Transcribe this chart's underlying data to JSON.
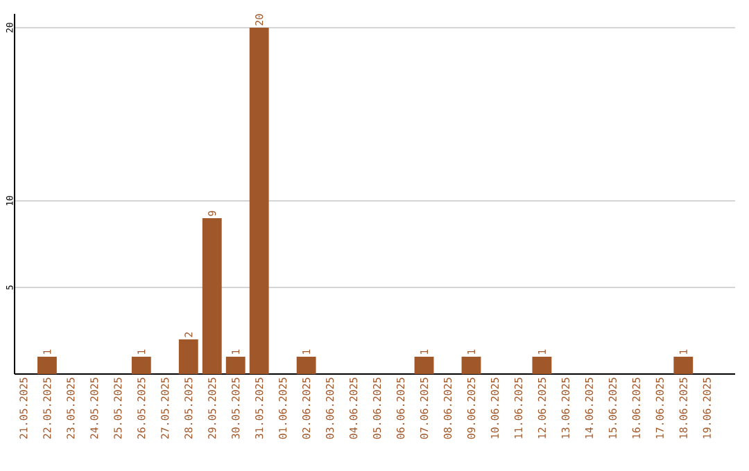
{
  "chart_data": {
    "type": "bar",
    "categories": [
      "21.05.2025",
      "22.05.2025",
      "23.05.2025",
      "24.05.2025",
      "25.05.2025",
      "26.05.2025",
      "27.05.2025",
      "28.05.2025",
      "29.05.2025",
      "30.05.2025",
      "31.05.2025",
      "01.06.2025",
      "02.06.2025",
      "03.06.2025",
      "04.06.2025",
      "05.06.2025",
      "06.06.2025",
      "07.06.2025",
      "08.06.2025",
      "09.06.2025",
      "10.06.2025",
      "11.06.2025",
      "12.06.2025",
      "13.06.2025",
      "14.06.2025",
      "15.06.2025",
      "16.06.2025",
      "17.06.2025",
      "18.06.2025",
      "19.06.2025"
    ],
    "values": [
      0,
      1,
      0,
      0,
      0,
      1,
      0,
      2,
      9,
      1,
      20,
      0,
      1,
      0,
      0,
      0,
      0,
      1,
      0,
      1,
      0,
      0,
      1,
      0,
      0,
      0,
      0,
      0,
      1,
      0
    ],
    "value_labels": [
      null,
      "1",
      null,
      null,
      null,
      "1",
      null,
      "2",
      "9",
      "1",
      "20",
      null,
      "1",
      null,
      null,
      null,
      null,
      "1",
      null,
      "1",
      null,
      null,
      "1",
      null,
      null,
      null,
      null,
      null,
      "1",
      null
    ],
    "color": "#a0572a",
    "ylim": [
      0,
      20.8
    ],
    "yticks": [
      5,
      10,
      20
    ],
    "grid": "y"
  }
}
